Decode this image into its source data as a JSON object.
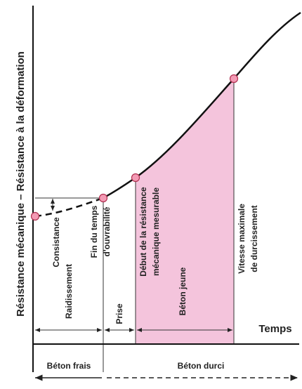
{
  "y_axis_label": "Résistance mécanique – Résistance à la déformation",
  "x_axis_label": "Temps",
  "markers": [
    {
      "lines": [
        "Consistance"
      ]
    },
    {
      "lines": [
        "Fin du temps",
        "d'ouvrabilité"
      ]
    },
    {
      "lines": [
        "Début de la résistance",
        "mécanique mesurable"
      ]
    },
    {
      "lines": [
        "Vitesse maximale",
        "de durcissement"
      ]
    }
  ],
  "phases": [
    "Raidissement",
    "Prise",
    "Béton jeune"
  ],
  "states": [
    "Béton frais",
    "Béton durci"
  ]
}
